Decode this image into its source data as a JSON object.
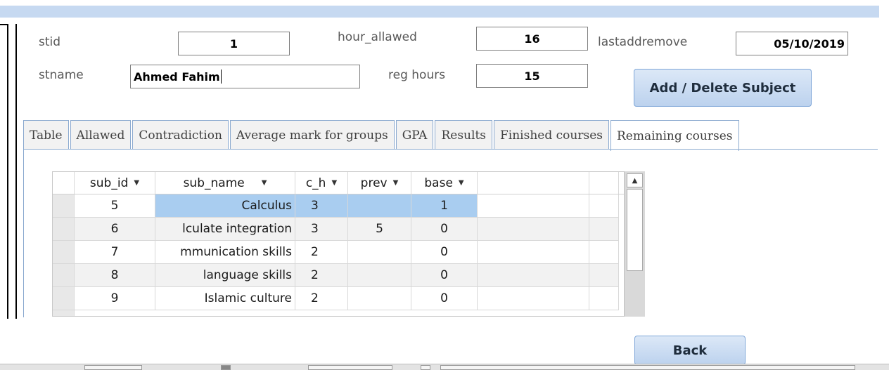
{
  "form": {
    "stid_label": "stid",
    "stid_value": "1",
    "stname_label": "stname",
    "stname_value": "Ahmed Fahim",
    "hour_allawed_label": "hour_allawed",
    "hour_allawed_value": "16",
    "reg_hours_label": "reg hours",
    "reg_hours_value": "15",
    "lastaddremove_label": "lastaddremove",
    "lastaddremove_value": "05/10/2019",
    "add_delete_label": "Add / Delete Subject",
    "back_label": "Back"
  },
  "tabs": [
    {
      "label": "Table"
    },
    {
      "label": "Allawed"
    },
    {
      "label": "Contradiction"
    },
    {
      "label": "Average mark for groups"
    },
    {
      "label": "GPA"
    },
    {
      "label": "Results"
    },
    {
      "label": "Finished courses"
    },
    {
      "label": "Remaining courses"
    }
  ],
  "active_tab": "Remaining courses",
  "grid": {
    "columns": [
      "sub_id",
      "sub_name",
      "c_h",
      "prev",
      "base"
    ],
    "rows": [
      {
        "sub_id": "5",
        "sub_name": "Calculus",
        "c_h": "3",
        "prev": "",
        "base": "1"
      },
      {
        "sub_id": "6",
        "sub_name": "lculate integration",
        "c_h": "3",
        "prev": "5",
        "base": "0"
      },
      {
        "sub_id": "7",
        "sub_name": "mmunication skills",
        "c_h": "2",
        "prev": "",
        "base": "0"
      },
      {
        "sub_id": "8",
        "sub_name": "language skills",
        "c_h": "2",
        "prev": "",
        "base": "0"
      },
      {
        "sub_id": "9",
        "sub_name": "Islamic culture",
        "c_h": "2",
        "prev": "",
        "base": "0"
      }
    ],
    "selected_row_index": 0
  },
  "colors": {
    "accent": "#c6d9f1",
    "selection": "#a9cdf0",
    "tab_border": "#8aa9cf"
  },
  "icons": {
    "sort_caret": "dropdown-caret-icon",
    "scroll_up": "scroll-up-arrow-icon"
  }
}
